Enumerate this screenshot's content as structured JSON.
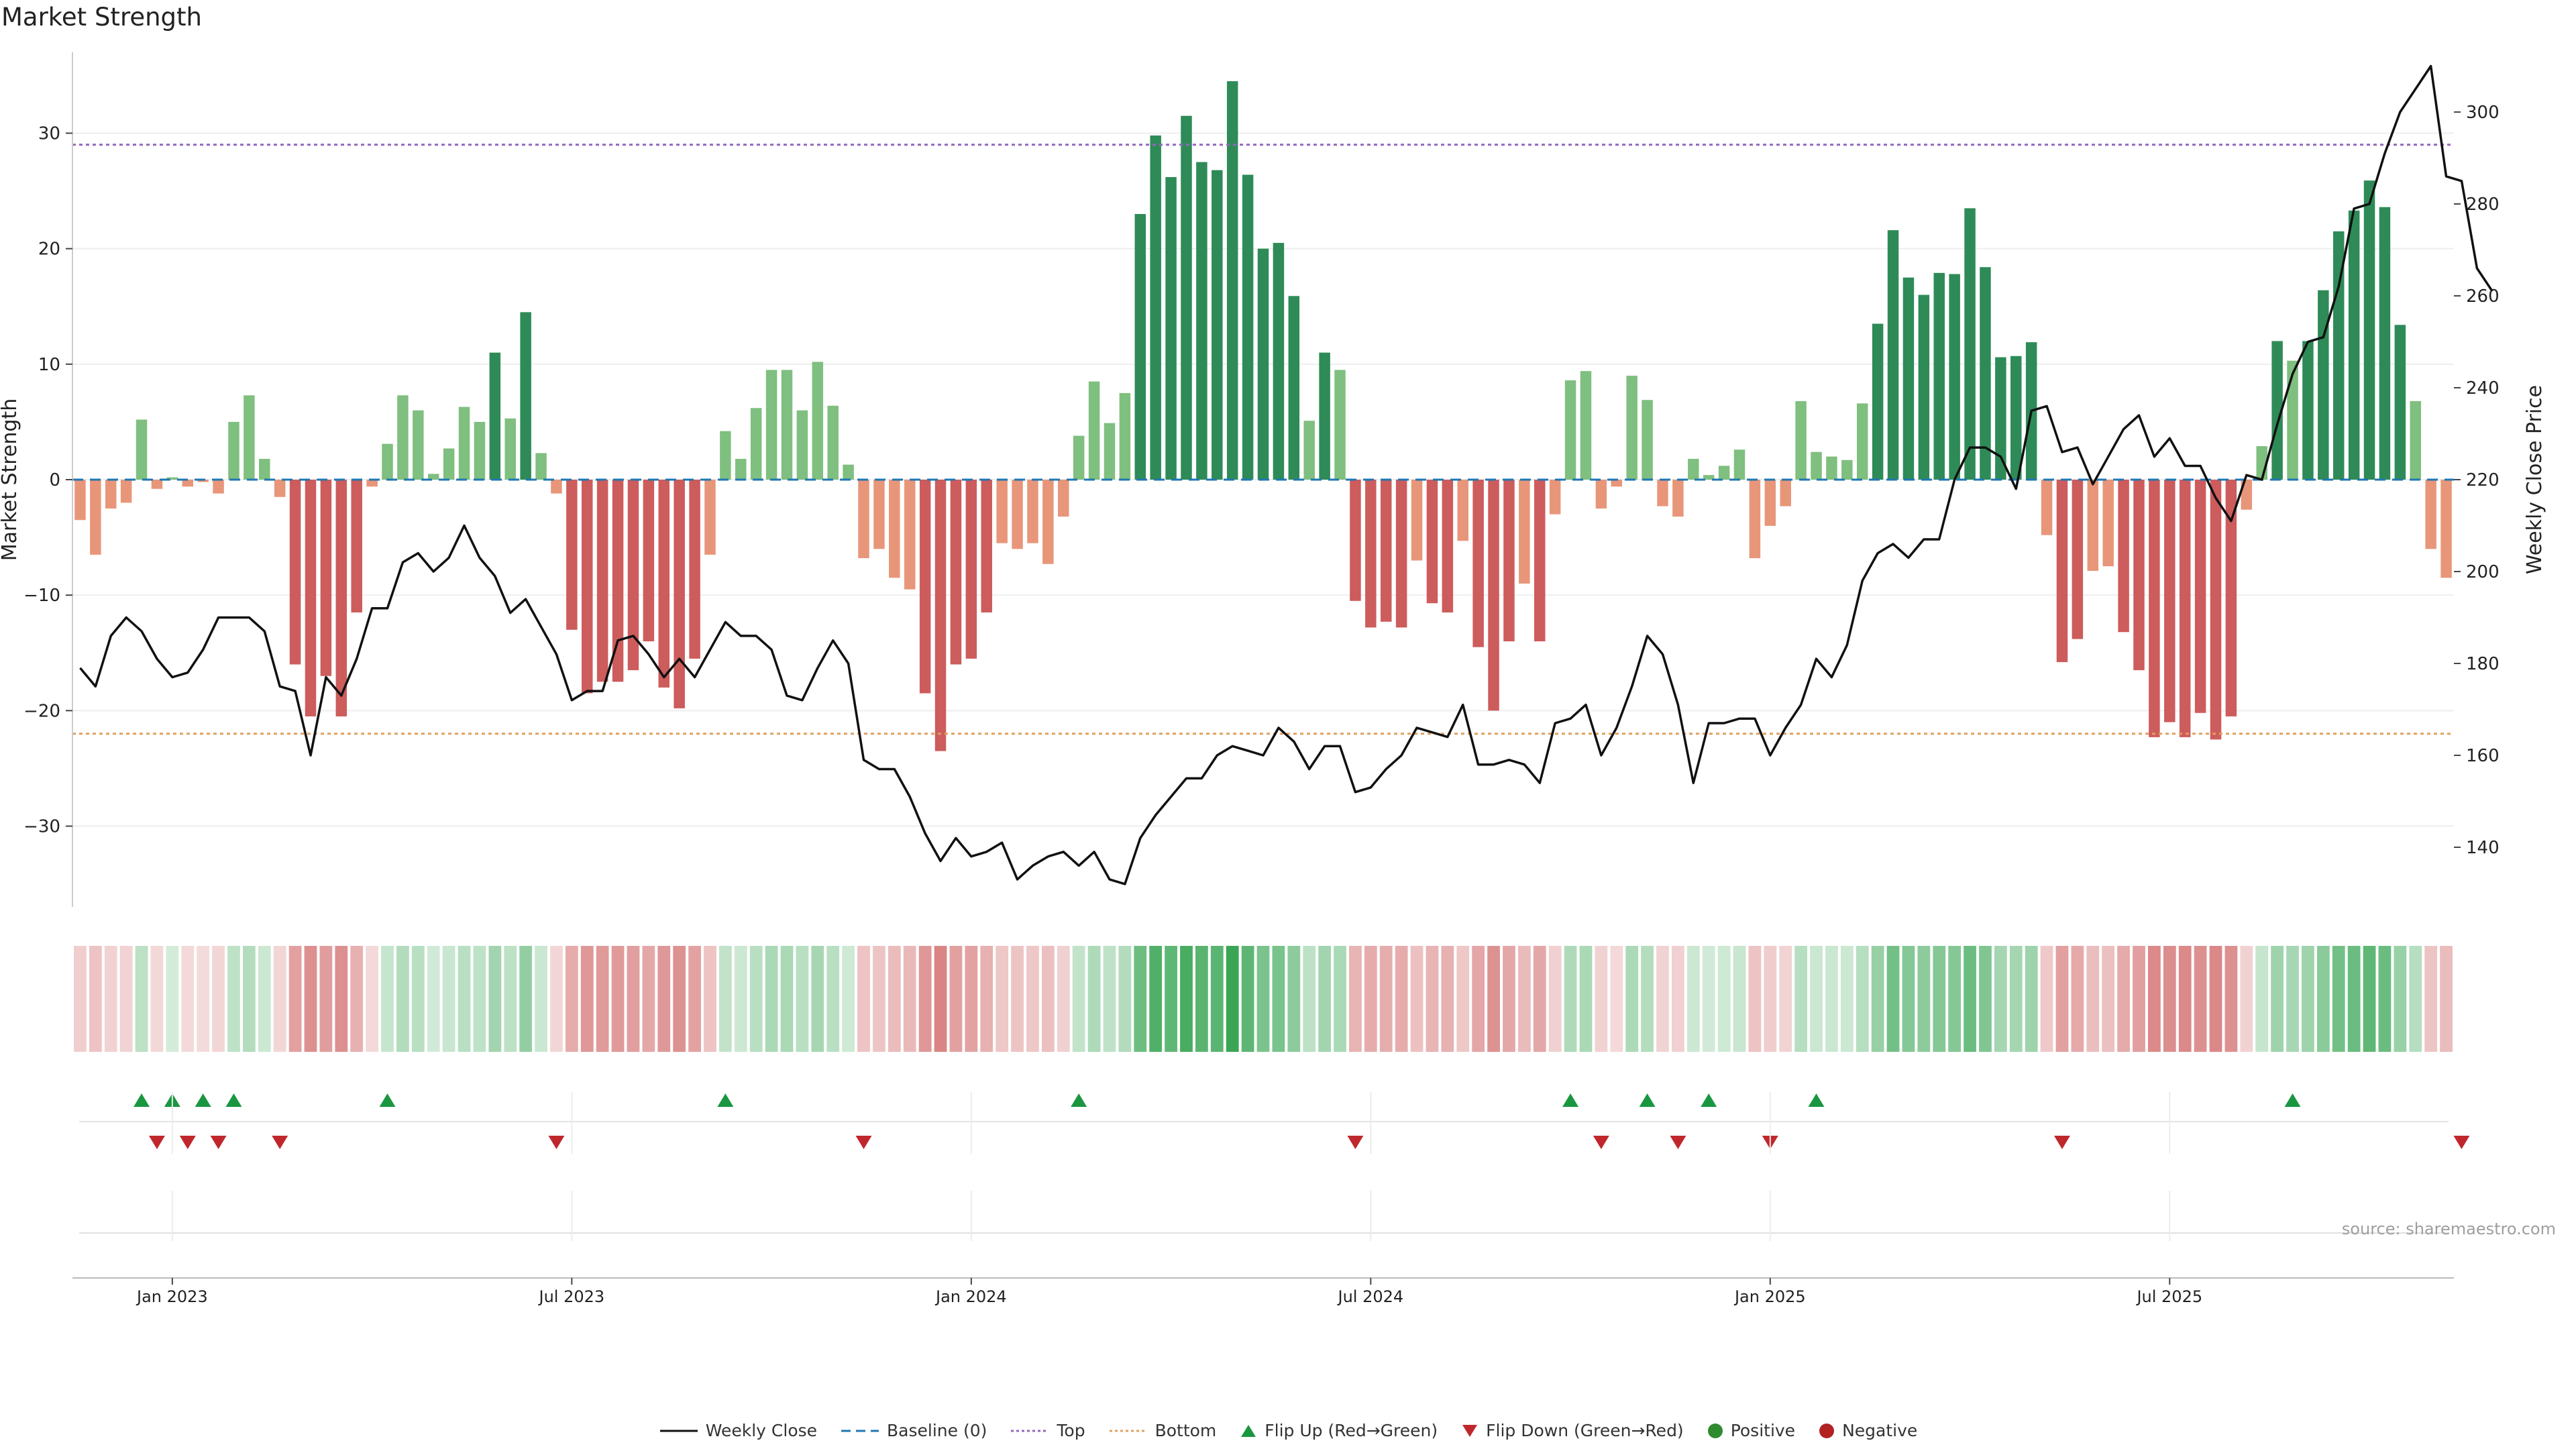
{
  "title": "Market Strength",
  "source": "source: sharemaestro.com",
  "colors": {
    "strong_green": "#2e8b57",
    "light_green": "#7fbf7f",
    "strong_red": "#cd5c5c",
    "light_red": "#e8967a",
    "price_line": "#111111",
    "baseline": "#1f77b4",
    "top": "#9467bd",
    "bottom": "#e0a060",
    "flip_up": "#1a9641",
    "flip_down": "#c0272d"
  },
  "chart_data": {
    "type": "bar",
    "title": "Market Strength",
    "ylabel": "Market Strength",
    "y2label": "Weekly Close Price",
    "ylim": [
      -37,
      37
    ],
    "y2lim": [
      127,
      313
    ],
    "yticks": [
      30,
      20,
      10,
      0,
      -10,
      -20,
      -30
    ],
    "y2ticks": [
      300,
      280,
      260,
      240,
      220,
      200,
      180,
      160,
      140
    ],
    "top_line": 29,
    "bottom_line": -22,
    "baseline": 0,
    "x_start": "2022-11-21",
    "x_interval_days": 7,
    "xtick_labels": [
      "Jan 2023",
      "Jul 2023",
      "Jan 2024",
      "Jul 2024",
      "Jan 2025",
      "Jul 2025"
    ],
    "xtick_index": [
      6,
      32,
      58,
      84,
      110,
      136
    ],
    "strength": [
      -3.5,
      -6.5,
      -2.5,
      -2.0,
      5.2,
      -0.8,
      0.2,
      -0.6,
      -0.2,
      -1.2,
      5.0,
      7.3,
      1.8,
      -1.5,
      -16.0,
      -20.5,
      -17.0,
      -20.5,
      -11.5,
      -0.6,
      3.1,
      7.3,
      6.0,
      0.5,
      2.7,
      6.3,
      5.0,
      11.0,
      5.3,
      14.5,
      2.3,
      -1.2,
      -13.0,
      -18.5,
      -17.5,
      -17.5,
      -16.5,
      -14.0,
      -18.0,
      -19.8,
      -15.5,
      -6.5,
      4.2,
      1.8,
      6.2,
      9.5,
      9.5,
      6.0,
      10.2,
      6.4,
      1.3,
      -6.8,
      -6.0,
      -8.5,
      -9.5,
      -18.5,
      -23.5,
      -16.0,
      -15.5,
      -11.5,
      -5.5,
      -6.0,
      -5.5,
      -7.3,
      -3.2,
      3.8,
      8.5,
      4.9,
      7.5,
      23.0,
      29.8,
      26.2,
      31.5,
      27.5,
      26.8,
      34.5,
      26.4,
      20.0,
      20.5,
      15.9,
      5.1,
      11.0,
      9.5,
      -10.5,
      -12.8,
      -12.3,
      -12.8,
      -7.0,
      -10.7,
      -11.5,
      -5.3,
      -14.5,
      -20.0,
      -14.0,
      -9.0,
      -14.0,
      -3.0,
      8.6,
      9.4,
      -2.5,
      -0.6,
      9.0,
      6.9,
      -2.3,
      -3.2,
      1.8,
      0.4,
      1.2,
      2.6,
      -6.8,
      -4.0,
      -2.3,
      6.8,
      2.4,
      2.0,
      1.7,
      6.6,
      13.5,
      21.6,
      17.5,
      16.0,
      17.9,
      17.8,
      23.5,
      18.4,
      10.6,
      10.7,
      11.9,
      -4.8,
      -15.8,
      -13.8,
      -7.9,
      -7.5,
      -13.2,
      -16.5,
      -22.3,
      -21.0,
      -22.3,
      -20.2,
      -22.5,
      -20.5,
      -2.6,
      2.9,
      12.0,
      10.3,
      12.0,
      16.4,
      21.5,
      23.3,
      25.9,
      23.6,
      13.4,
      6.8,
      -6.0,
      -8.5
    ],
    "weekly_close": [
      179,
      175,
      186,
      190,
      187,
      181,
      177,
      178,
      183,
      190,
      190,
      190,
      187,
      175,
      174,
      160,
      177,
      173,
      181,
      192,
      192,
      202,
      204,
      200,
      203,
      210,
      203,
      199,
      191,
      194,
      188,
      182,
      172,
      174,
      174,
      185,
      186,
      182,
      177,
      181,
      177,
      183,
      189,
      186,
      186,
      183,
      173,
      172,
      179,
      185,
      180,
      159,
      157,
      157,
      151,
      143,
      137,
      142,
      138,
      139,
      141,
      133,
      136,
      138,
      139,
      136,
      139,
      133,
      132,
      142,
      147,
      151,
      155,
      155,
      160,
      162,
      161,
      160,
      166,
      163,
      157,
      162,
      162,
      152,
      153,
      157,
      160,
      166,
      165,
      164,
      171,
      158,
      158,
      159,
      158,
      154,
      167,
      168,
      171,
      160,
      166,
      175,
      186,
      182,
      171,
      154,
      167,
      167,
      168,
      168,
      160,
      166,
      171,
      181,
      177,
      184,
      198,
      204,
      206,
      203,
      207,
      207,
      220,
      227,
      227,
      225,
      218,
      235,
      236,
      226,
      227,
      219,
      225,
      231,
      234,
      225,
      229,
      223,
      223,
      216,
      211,
      221,
      220,
      232,
      243,
      250,
      251,
      262,
      279,
      280,
      291,
      300,
      305,
      310,
      286,
      285,
      266,
      261
    ],
    "flip_up_index": [
      4,
      6,
      8,
      10,
      20,
      42,
      65,
      97,
      102,
      106,
      113,
      144
    ],
    "flip_down_index": [
      5,
      7,
      9,
      13,
      31,
      51,
      83,
      99,
      104,
      110,
      129,
      155
    ],
    "legend": [
      "Weekly Close",
      "Baseline (0)",
      "Top",
      "Bottom",
      "Flip Up (Red→Green)",
      "Flip Down (Green→Red)",
      "Positive",
      "Negative"
    ],
    "legend_position": "bottom-center"
  }
}
